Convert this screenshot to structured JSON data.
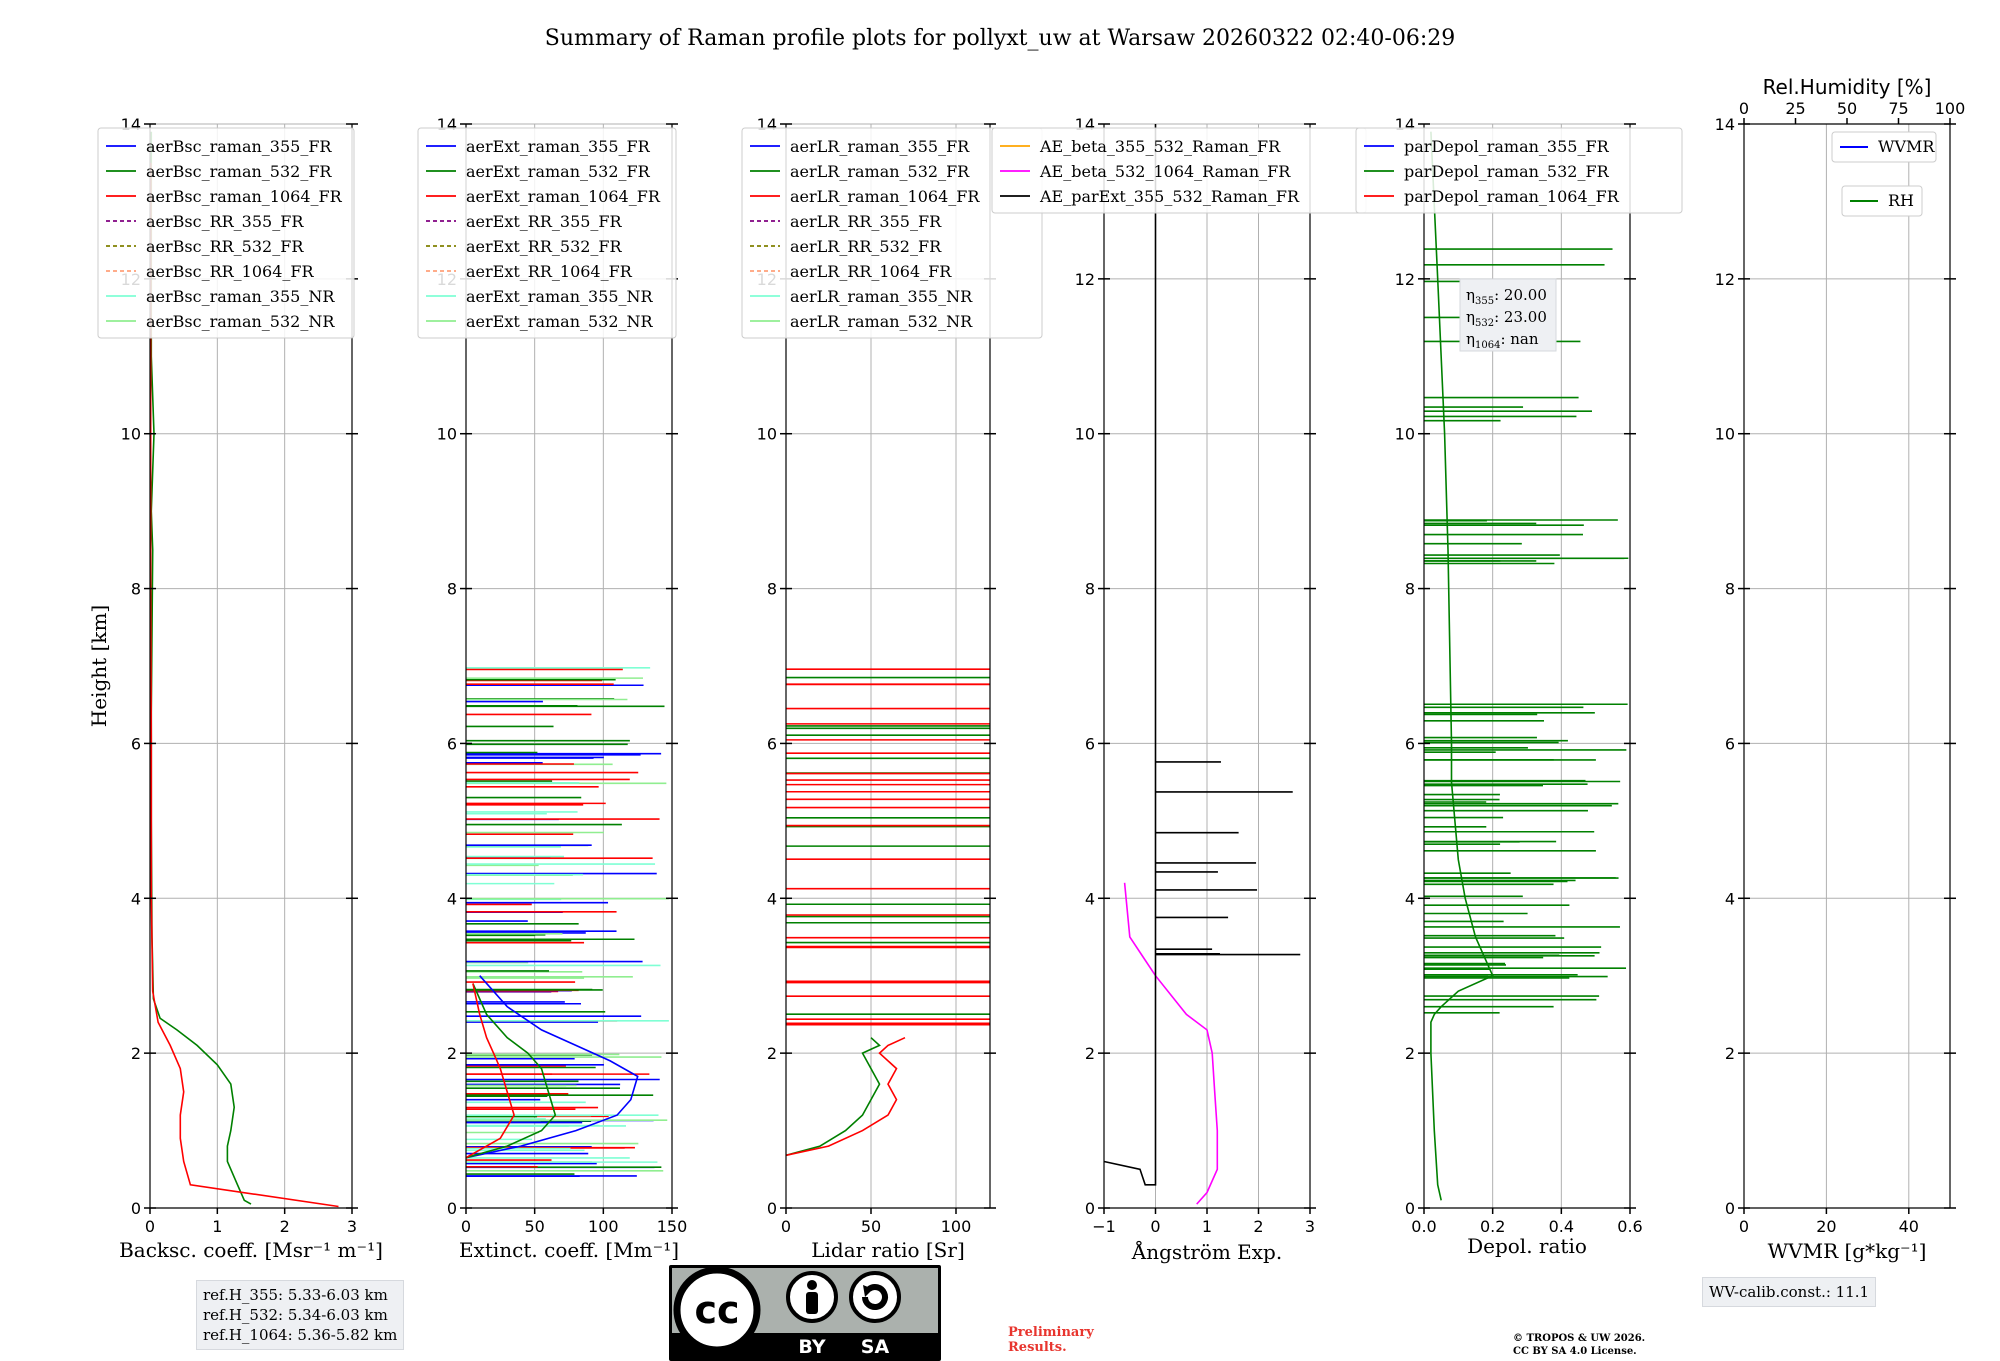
{
  "title": "Summary of Raman profile plots for pollyxt_uw at Warsaw 20260322 02:40-06:29",
  "colors": {
    "c355": "#0000ff",
    "c532": "#008000",
    "c1064": "#ff0000",
    "rr355": "#800080",
    "rr532": "#808000",
    "rr1064": "#ffa07a",
    "nr355": "#7fffd4",
    "nr532": "#90ee90",
    "ae_b355_532": "#ffa500",
    "ae_b532_1064": "#ff00ff",
    "ae_ext": "#000000"
  },
  "chart_data": [
    {
      "id": "backscatter",
      "type": "line",
      "xlabel": "Backsc. coeff. [Msr⁻¹ m⁻¹]",
      "ylabel": "Height [km]",
      "xlim": [
        0,
        3
      ],
      "ylim": [
        0,
        14
      ],
      "xticks": [
        "0",
        "1",
        "2",
        "3"
      ],
      "yticks": [
        "0",
        "2",
        "4",
        "6",
        "8",
        "10",
        "12",
        "14"
      ],
      "legend": [
        "aerBsc_raman_355_FR",
        "aerBsc_raman_532_FR",
        "aerBsc_raman_1064_FR",
        "aerBsc_RR_355_FR",
        "aerBsc_RR_532_FR",
        "aerBsc_RR_1064_FR",
        "aerBsc_raman_355_NR",
        "aerBsc_raman_532_NR"
      ],
      "series": [
        {
          "name": "aerBsc_raman_532_FR",
          "x": [
            1.5,
            1.4,
            1.3,
            1.15,
            1.15,
            1.2,
            1.25,
            1.2,
            1.0,
            0.7,
            0.4,
            0.15,
            0.05,
            0.03,
            0.02,
            0.02,
            0.04,
            0.02,
            0.06,
            0.02,
            0.02
          ],
          "y": [
            0.05,
            0.1,
            0.3,
            0.6,
            0.8,
            1.0,
            1.3,
            1.6,
            1.85,
            2.1,
            2.3,
            2.45,
            2.7,
            3.5,
            5.0,
            6.4,
            8.5,
            9.0,
            10.0,
            11.0,
            13.9
          ]
        },
        {
          "name": "aerBsc_raman_1064_FR",
          "x": [
            2.8,
            0.6,
            0.5,
            0.45,
            0.45,
            0.5,
            0.45,
            0.3,
            0.12,
            0.04,
            0.02,
            0.02,
            0.01,
            0.01,
            0.01
          ],
          "y": [
            0.02,
            0.3,
            0.6,
            0.9,
            1.2,
            1.5,
            1.8,
            2.1,
            2.4,
            2.8,
            4.0,
            6.0,
            8.0,
            10.0,
            13.5
          ]
        }
      ]
    },
    {
      "id": "extinction",
      "type": "line",
      "xlabel": "Extinct. coeff. [Mm⁻¹]",
      "xlim": [
        0,
        150
      ],
      "ylim": [
        0,
        14
      ],
      "xticks": [
        "0",
        "50",
        "100",
        "150"
      ],
      "yticks": [
        "0",
        "2",
        "4",
        "6",
        "8",
        "10",
        "12",
        "14"
      ],
      "legend": [
        "aerExt_raman_355_FR",
        "aerExt_raman_532_FR",
        "aerExt_raman_1064_FR",
        "aerExt_RR_355_FR",
        "aerExt_RR_532_FR",
        "aerExt_RR_1064_FR",
        "aerExt_raman_355_NR",
        "aerExt_raman_532_NR"
      ],
      "series": [
        {
          "name": "aerExt_raman_355_FR",
          "x": [
            0,
            40,
            80,
            110,
            120,
            125,
            105,
            80,
            55,
            30,
            10
          ],
          "y": [
            0.65,
            0.8,
            1.0,
            1.2,
            1.4,
            1.7,
            1.9,
            2.1,
            2.3,
            2.6,
            3.0
          ]
        },
        {
          "name": "aerExt_raman_532_FR",
          "x": [
            0,
            30,
            55,
            65,
            60,
            55,
            45,
            30,
            15,
            5
          ],
          "y": [
            0.65,
            0.8,
            1.0,
            1.2,
            1.5,
            1.8,
            2.0,
            2.2,
            2.5,
            2.9
          ]
        },
        {
          "name": "aerExt_raman_1064_FR",
          "x": [
            0,
            25,
            35,
            30,
            25,
            20,
            15,
            10,
            5
          ],
          "y": [
            0.65,
            0.9,
            1.2,
            1.5,
            1.8,
            2.0,
            2.2,
            2.5,
            2.9
          ]
        }
      ]
    },
    {
      "id": "lidar_ratio",
      "type": "line",
      "xlabel": "Lidar ratio [Sr]",
      "xlim": [
        0,
        120
      ],
      "ylim": [
        0,
        14
      ],
      "xticks": [
        "0",
        "50",
        "100"
      ],
      "yticks": [
        "0",
        "2",
        "4",
        "6",
        "8",
        "10",
        "12",
        "14"
      ],
      "legend": [
        "aerLR_raman_355_FR",
        "aerLR_raman_532_FR",
        "aerLR_raman_1064_FR",
        "aerLR_RR_355_FR",
        "aerLR_RR_532_FR",
        "aerLR_RR_1064_FR",
        "aerLR_raman_355_NR",
        "aerLR_raman_532_NR"
      ],
      "series": [
        {
          "name": "aerLR_raman_532_FR",
          "x": [
            0,
            20,
            35,
            45,
            50,
            55,
            50,
            45,
            55,
            50
          ],
          "y": [
            0.68,
            0.8,
            1.0,
            1.2,
            1.4,
            1.6,
            1.8,
            2.0,
            2.1,
            2.2
          ]
        },
        {
          "name": "aerLR_raman_1064_FR",
          "x": [
            0,
            25,
            45,
            60,
            65,
            60,
            65,
            55,
            60,
            70
          ],
          "y": [
            0.68,
            0.8,
            1.0,
            1.2,
            1.4,
            1.6,
            1.8,
            2.0,
            2.1,
            2.2
          ]
        }
      ]
    },
    {
      "id": "angstrom",
      "type": "line",
      "xlabel": "Ångström Exp.",
      "xlim": [
        -1,
        3
      ],
      "ylim": [
        0,
        14
      ],
      "xticks": [
        "−1",
        "0",
        "1",
        "2",
        "3"
      ],
      "yticks": [
        "0",
        "2",
        "4",
        "6",
        "8",
        "10",
        "12",
        "14"
      ],
      "legend": [
        "AE_beta_355_532_Raman_FR",
        "AE_beta_532_1064_Raman_FR",
        "AE_parExt_355_532_Raman_FR"
      ],
      "series": [
        {
          "name": "AE_beta_532_1064_Raman_FR",
          "x": [
            0.8,
            1.0,
            1.2,
            1.2,
            1.15,
            1.1,
            1.0,
            0.6,
            0.0,
            -0.5,
            -0.6
          ],
          "y": [
            0.05,
            0.2,
            0.5,
            1.0,
            1.5,
            2.0,
            2.3,
            2.5,
            3.0,
            3.5,
            4.2
          ]
        },
        {
          "name": "AE_parExt_355_532_Raman_FR",
          "x": [
            -1.0,
            -0.3,
            -0.2,
            0.0,
            0.0,
            0.0,
            0.0,
            0.0,
            0.0,
            0.0
          ],
          "y": [
            0.6,
            0.5,
            0.3,
            0.3,
            2.5,
            4.0,
            6.0,
            8.0,
            10.0,
            14.0
          ]
        }
      ]
    },
    {
      "id": "depol",
      "type": "line",
      "xlabel": "Depol. ratio",
      "xlim": [
        0.0,
        0.6
      ],
      "ylim": [
        0,
        14
      ],
      "xticks": [
        "0.0",
        "0.2",
        "0.4",
        "0.6"
      ],
      "yticks": [
        "0",
        "2",
        "4",
        "6",
        "8",
        "10",
        "12",
        "14"
      ],
      "legend": [
        "parDepol_raman_355_FR",
        "parDepol_raman_532_FR",
        "parDepol_raman_1064_FR"
      ],
      "annotation": {
        "lines": [
          {
            "sym": "η",
            "sub": "355",
            "val": "20.00"
          },
          {
            "sym": "η",
            "sub": "532",
            "val": "23.00"
          },
          {
            "sym": "η",
            "sub": "1064",
            "val": "nan"
          }
        ]
      },
      "series": [
        {
          "name": "parDepol_raman_532_FR",
          "x": [
            0.05,
            0.04,
            0.03,
            0.02,
            0.02,
            0.03,
            0.05,
            0.1,
            0.2,
            0.15,
            0.12,
            0.1,
            0.09,
            0.08,
            0.08,
            0.07,
            0.06,
            0.04,
            0.02
          ],
          "y": [
            0.1,
            0.3,
            1.0,
            2.0,
            2.4,
            2.5,
            2.6,
            2.8,
            3.0,
            3.5,
            4.0,
            4.5,
            5.0,
            5.5,
            6.0,
            8.5,
            10.0,
            12.0,
            13.9
          ]
        }
      ]
    },
    {
      "id": "wvmr",
      "type": "line",
      "xlabel": "WVMR [g*kg⁻¹]",
      "xlim": [
        0,
        50
      ],
      "ylim": [
        0,
        14
      ],
      "xticks": [
        "0",
        "20",
        "40"
      ],
      "yticks": [
        "0",
        "2",
        "4",
        "6",
        "8",
        "10",
        "12",
        "14"
      ],
      "top_axis": {
        "label": "Rel.Humidity [%]",
        "ticks": [
          "0",
          "25",
          "50",
          "75",
          "100"
        ],
        "lim": [
          0,
          100
        ]
      },
      "legend": [
        "WVMR",
        "RH"
      ],
      "series": []
    }
  ],
  "ref_heights": [
    "ref.H_355: 5.33-6.03 km",
    "ref.H_532: 5.34-6.03 km",
    "ref.H_1064: 5.36-5.82 km"
  ],
  "wv_calib": "WV-calib.const.: 11.1",
  "cc_license": {
    "by": "BY",
    "sa": "SA",
    "cc": "cc"
  },
  "preliminary": [
    "Preliminary",
    "Results."
  ],
  "copyright": [
    "© TROPOS & UW 2026.",
    "CC BY SA 4.0 License."
  ]
}
